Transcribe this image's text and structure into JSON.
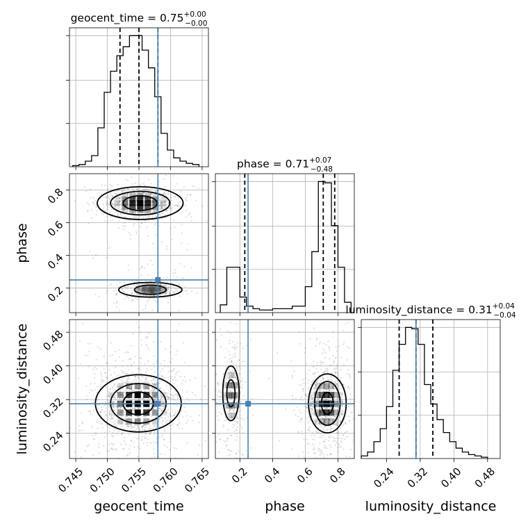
{
  "chart_data": {
    "type": "corner",
    "parameters": [
      {
        "name": "geocent_time",
        "axis_label": "geocent_time",
        "range": [
          0.744,
          0.766
        ],
        "ticks": [
          0.745,
          0.75,
          0.755,
          0.76,
          0.765
        ],
        "tick_labels": [
          "0.745",
          "0.750",
          "0.755",
          "0.760",
          "0.765"
        ],
        "truth": 0.758,
        "quantiles": [
          0.752,
          0.755,
          0.758
        ],
        "title_main": "geocent_time = 0.75",
        "title_sup": "+0.00",
        "title_sub": "−0.00",
        "hist": {
          "edges": [
            0.7445,
            0.7455,
            0.7465,
            0.7475,
            0.7485,
            0.7495,
            0.7505,
            0.7515,
            0.7525,
            0.7535,
            0.7545,
            0.7555,
            0.7565,
            0.7575,
            0.7585,
            0.7595,
            0.7605,
            0.7615,
            0.7625,
            0.7635,
            0.7645
          ],
          "counts": [
            1,
            2,
            5,
            10,
            35,
            67,
            86,
            100,
            108,
            118,
            118,
            105,
            89,
            63,
            30,
            15,
            8,
            5,
            3,
            2
          ]
        }
      },
      {
        "name": "phase",
        "axis_label": "phase",
        "range": [
          0.05,
          0.9
        ],
        "ticks": [
          0.2,
          0.4,
          0.6,
          0.8
        ],
        "tick_labels": [
          "0.2",
          "0.4",
          "0.6",
          "0.8"
        ],
        "truth": 0.25,
        "quantiles": [
          0.23,
          0.71,
          0.78
        ],
        "title_main": "phase = 0.71",
        "title_sup": "+0.07",
        "title_sub": "−0.48",
        "hist": {
          "edges": [
            0.08,
            0.12,
            0.16,
            0.2,
            0.24,
            0.28,
            0.32,
            0.36,
            0.4,
            0.44,
            0.48,
            0.52,
            0.56,
            0.6,
            0.64,
            0.68,
            0.72,
            0.76,
            0.8,
            0.84,
            0.88
          ],
          "counts": [
            6,
            35,
            35,
            12,
            5,
            3,
            2,
            2,
            3,
            3,
            3,
            5,
            5,
            20,
            47,
            101,
            100,
            67,
            35,
            8
          ]
        }
      },
      {
        "name": "luminosity_distance",
        "axis_label": "luminosity_distance",
        "range": [
          0.18,
          0.51
        ],
        "ticks": [
          0.24,
          0.32,
          0.4,
          0.48
        ],
        "tick_labels": [
          "0.24",
          "0.32",
          "0.40",
          "0.48"
        ],
        "truth": 0.31,
        "quantiles": [
          0.27,
          0.31,
          0.35
        ],
        "title_main": "luminosity_distance = 0.31",
        "title_sup": "+0.04",
        "title_sub": "−0.04",
        "hist": {
          "edges": [
            0.18,
            0.195,
            0.21,
            0.225,
            0.24,
            0.255,
            0.27,
            0.285,
            0.3,
            0.315,
            0.33,
            0.345,
            0.36,
            0.375,
            0.39,
            0.405,
            0.42,
            0.435,
            0.45,
            0.465,
            0.48
          ],
          "counts": [
            2,
            5,
            13,
            23,
            40,
            68,
            88,
            101,
            100,
            88,
            57,
            42,
            30,
            20,
            13,
            8,
            5,
            3,
            2,
            1
          ]
        }
      }
    ],
    "pairs": [
      {
        "x": "geocent_time",
        "y": "phase",
        "truth": [
          0.758,
          0.25
        ],
        "modes": [
          {
            "cx": 0.7552,
            "cy": 0.72,
            "sx": 0.0022,
            "sy": 0.035,
            "w": 0.72
          },
          {
            "cx": 0.757,
            "cy": 0.19,
            "sx": 0.0018,
            "sy": 0.02,
            "w": 0.28
          }
        ],
        "contours": [
          {
            "cx": 0.7552,
            "cy": 0.72,
            "rx": 0.0027,
            "ry": 0.045
          },
          {
            "cx": 0.7552,
            "cy": 0.72,
            "rx": 0.0047,
            "ry": 0.072
          },
          {
            "cx": 0.7552,
            "cy": 0.72,
            "rx": 0.0068,
            "ry": 0.1
          },
          {
            "cx": 0.7568,
            "cy": 0.19,
            "rx": 0.0025,
            "ry": 0.028
          },
          {
            "cx": 0.7568,
            "cy": 0.19,
            "rx": 0.005,
            "ry": 0.045
          }
        ]
      },
      {
        "x": "geocent_time",
        "y": "luminosity_distance",
        "truth": [
          0.758,
          0.31
        ],
        "modes": [
          {
            "cx": 0.7548,
            "cy": 0.31,
            "sx": 0.0025,
            "sy": 0.035,
            "w": 1.0
          }
        ],
        "contours": [
          {
            "cx": 0.7549,
            "cy": 0.311,
            "rx": 0.0024,
            "ry": 0.027
          },
          {
            "cx": 0.7549,
            "cy": 0.311,
            "rx": 0.0044,
            "ry": 0.047
          },
          {
            "cx": 0.7549,
            "cy": 0.311,
            "rx": 0.0068,
            "ry": 0.068
          }
        ]
      },
      {
        "x": "phase",
        "y": "luminosity_distance",
        "truth": [
          0.25,
          0.31
        ],
        "modes": [
          {
            "cx": 0.73,
            "cy": 0.31,
            "sx": 0.05,
            "sy": 0.035,
            "w": 0.72
          },
          {
            "cx": 0.15,
            "cy": 0.33,
            "sx": 0.03,
            "sy": 0.04,
            "w": 0.28
          }
        ],
        "contours": [
          {
            "cx": 0.735,
            "cy": 0.311,
            "rx": 0.036,
            "ry": 0.026
          },
          {
            "cx": 0.735,
            "cy": 0.311,
            "rx": 0.078,
            "ry": 0.052
          },
          {
            "cx": 0.735,
            "cy": 0.311,
            "rx": 0.115,
            "ry": 0.07
          },
          {
            "cx": 0.145,
            "cy": 0.335,
            "rx": 0.025,
            "ry": 0.032
          },
          {
            "cx": 0.145,
            "cy": 0.335,
            "rx": 0.05,
            "ry": 0.065
          }
        ]
      }
    ],
    "grid": true,
    "colors": {
      "truth": "#4682b4",
      "hist": "#000000",
      "contour": "#000000",
      "grid": "#b0b0b0"
    }
  }
}
